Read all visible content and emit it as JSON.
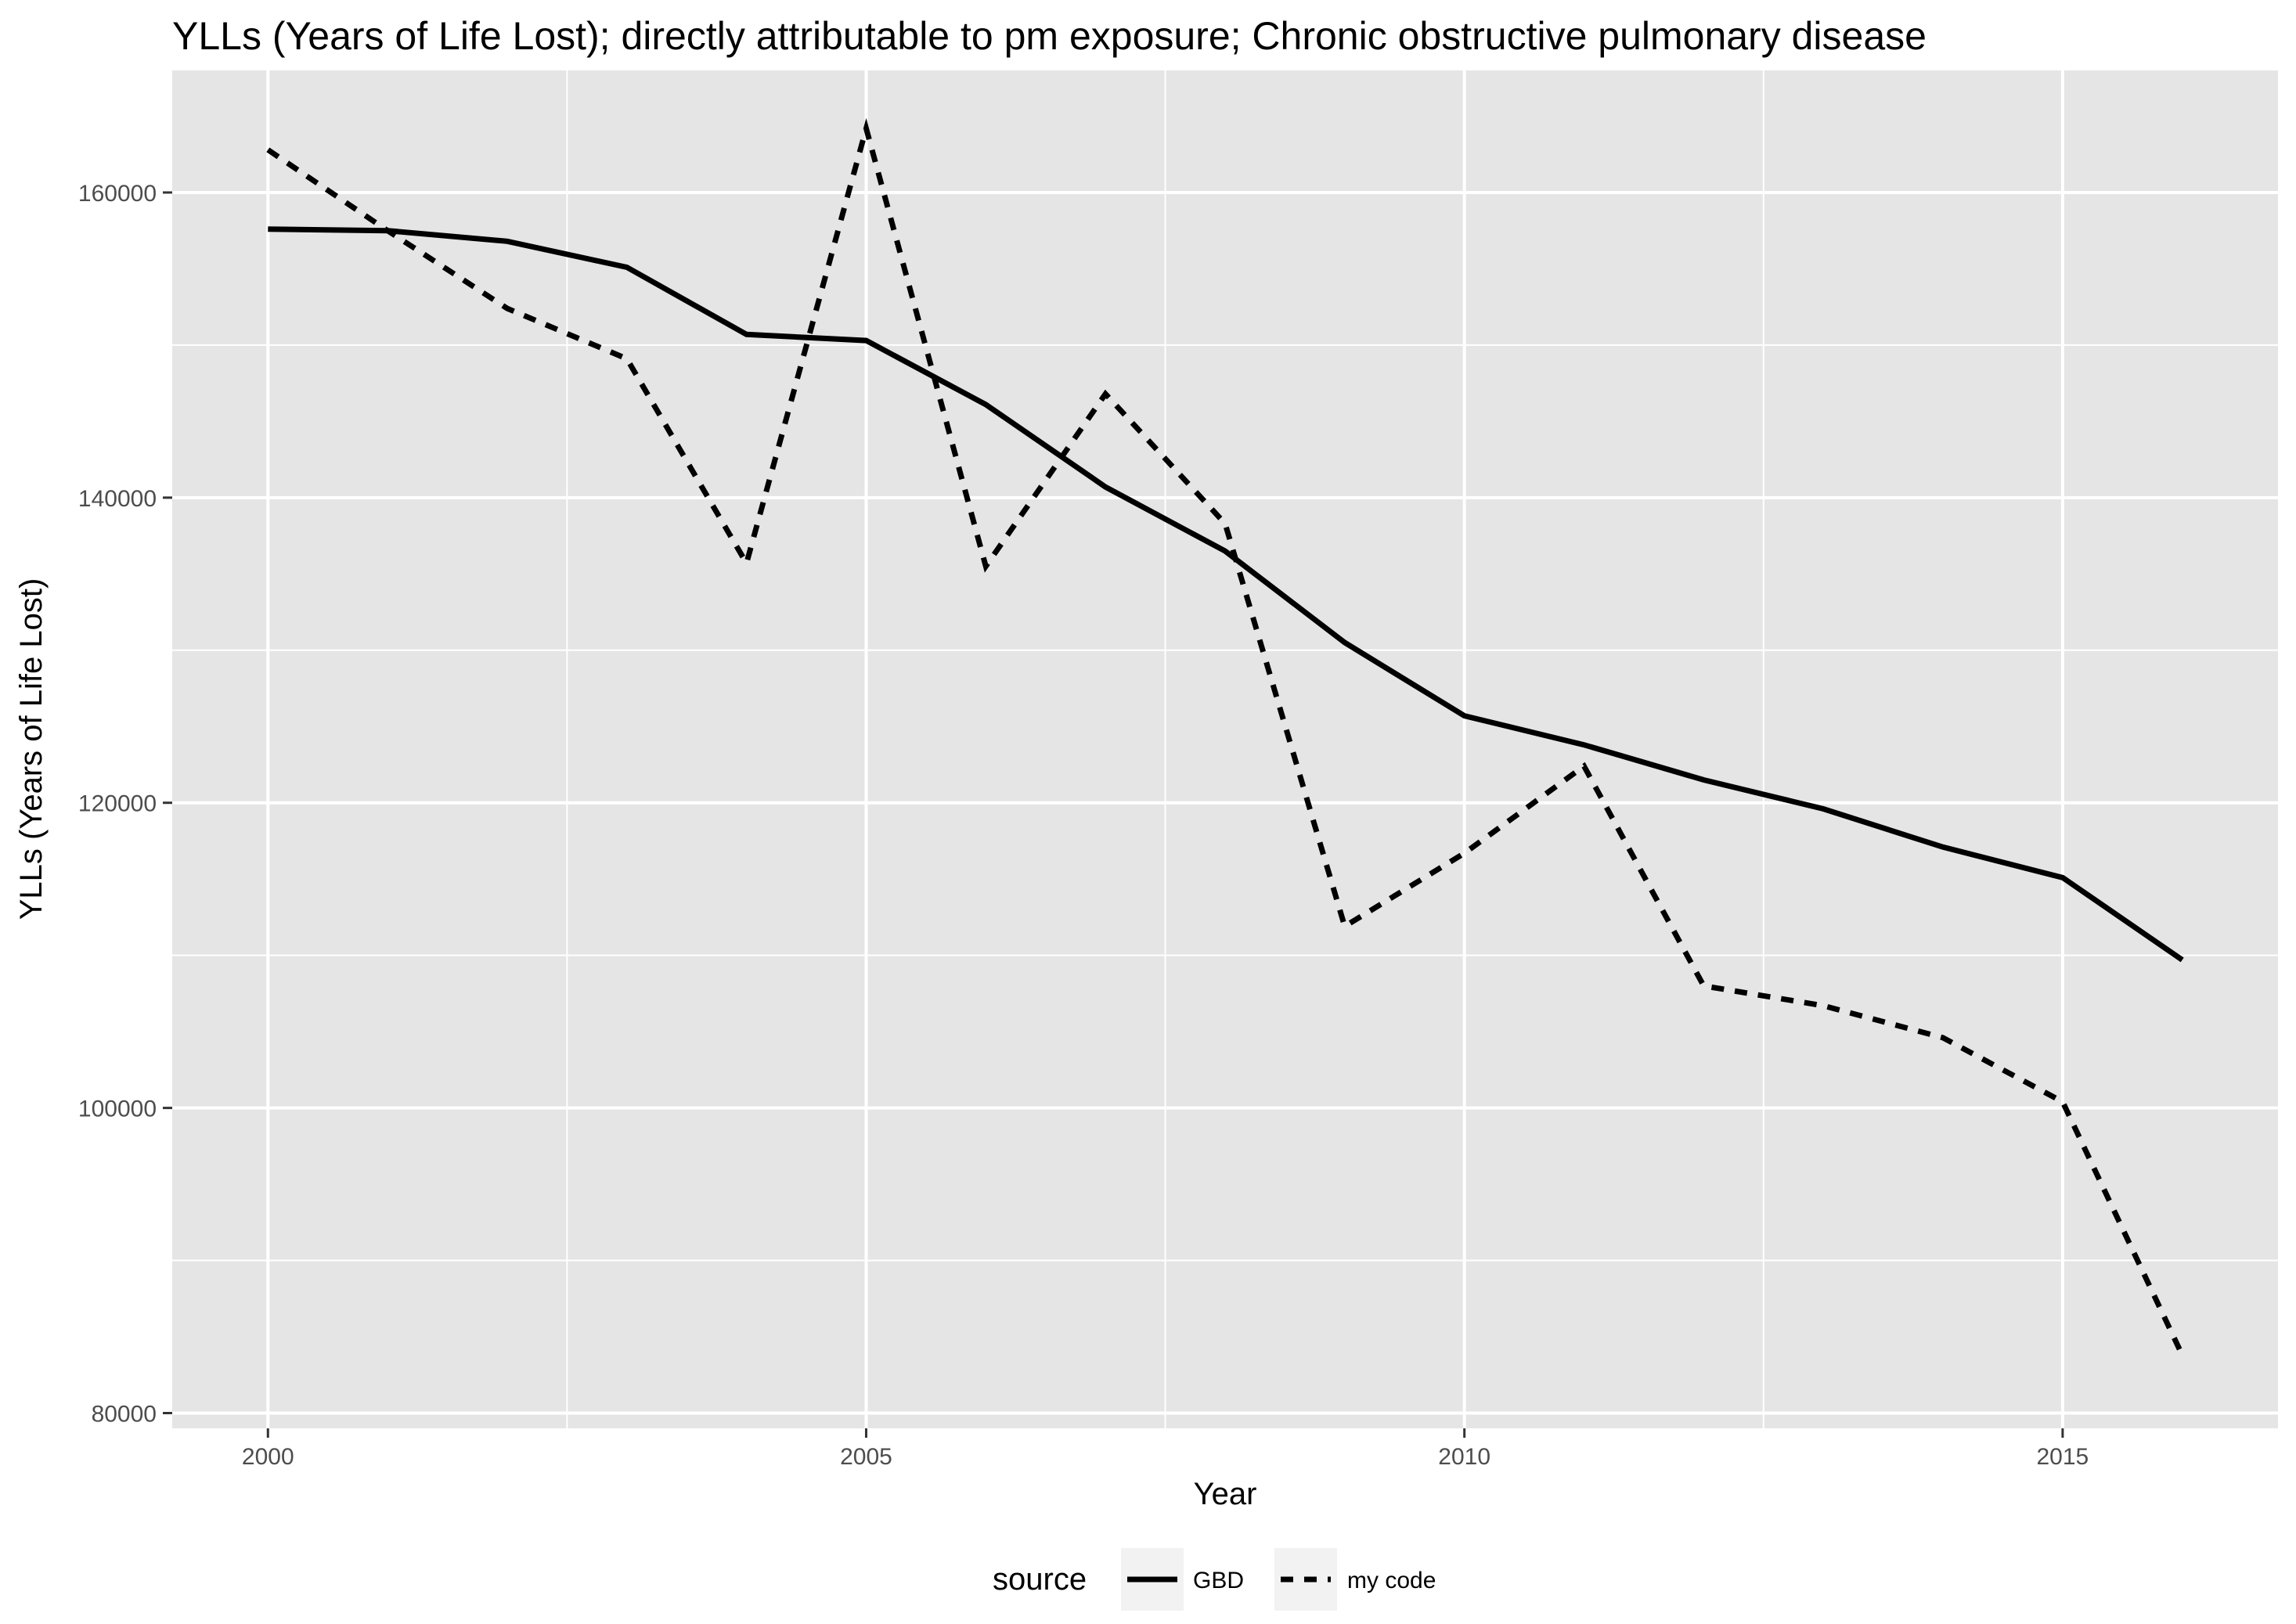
{
  "chart_data": {
    "type": "line",
    "title": "YLLs (Years of Life Lost); directly attributable to pm exposure; Chronic obstructive pulmonary disease",
    "xlabel": "Year",
    "ylabel": "YLLs (Years of Life Lost)",
    "xlim": [
      1999.2,
      2016.8
    ],
    "ylim": [
      79000,
      168000
    ],
    "x_ticks": [
      2000,
      2005,
      2010,
      2015
    ],
    "y_ticks": [
      80000,
      100000,
      120000,
      140000,
      160000
    ],
    "x_tick_labels": [
      "2000",
      "2005",
      "2010",
      "2015"
    ],
    "y_tick_labels": [
      "80000",
      "100000",
      "120000",
      "140000",
      "160000"
    ],
    "grid": true,
    "panel_background": "#e5e5e5",
    "grid_color": "#ffffff",
    "legend": {
      "title": "source",
      "position": "bottom"
    },
    "x": [
      2000,
      2001,
      2002,
      2003,
      2004,
      2005,
      2006,
      2007,
      2008,
      2009,
      2010,
      2011,
      2012,
      2013,
      2014,
      2015,
      2016
    ],
    "series": [
      {
        "name": "GBD",
        "linetype": "solid",
        "color": "#000000",
        "values": [
          157600,
          157500,
          156800,
          155100,
          150700,
          150300,
          146100,
          140700,
          136500,
          130500,
          125700,
          123800,
          121500,
          119600,
          117100,
          115100,
          109700
        ]
      },
      {
        "name": "my code",
        "linetype": "dashed",
        "color": "#000000",
        "values": [
          162800,
          157500,
          152400,
          149100,
          135700,
          164200,
          135500,
          146800,
          138300,
          111900,
          116700,
          122400,
          108000,
          106700,
          104600,
          100400,
          83800
        ]
      }
    ]
  }
}
